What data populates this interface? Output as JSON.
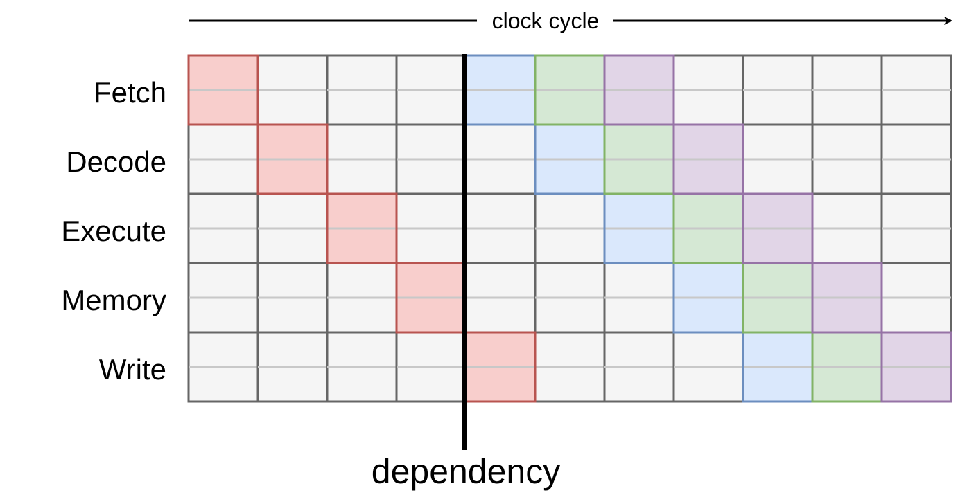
{
  "axis": {
    "label": "clock cycle"
  },
  "stages": [
    "Fetch",
    "Decode",
    "Execute",
    "Memory",
    "Write"
  ],
  "cycles": 11,
  "dependency": {
    "label": "dependency",
    "after_cycle": 4
  },
  "instructions": [
    {
      "color": "red",
      "fill": "#f8cecc",
      "stroke": "#b85450",
      "cells": [
        [
          0,
          0
        ],
        [
          1,
          1
        ],
        [
          2,
          2
        ],
        [
          3,
          3
        ],
        [
          4,
          4
        ]
      ]
    },
    {
      "color": "blue",
      "fill": "#dae8fc",
      "stroke": "#6c8ebf",
      "cells": [
        [
          0,
          4
        ],
        [
          1,
          5
        ],
        [
          2,
          6
        ],
        [
          3,
          7
        ],
        [
          4,
          8
        ]
      ]
    },
    {
      "color": "green",
      "fill": "#d5e8d4",
      "stroke": "#82b366",
      "cells": [
        [
          0,
          5
        ],
        [
          1,
          6
        ],
        [
          2,
          7
        ],
        [
          3,
          8
        ],
        [
          4,
          9
        ]
      ]
    },
    {
      "color": "purple",
      "fill": "#e1d5e7",
      "stroke": "#9673a6",
      "cells": [
        [
          0,
          6
        ],
        [
          1,
          7
        ],
        [
          2,
          8
        ],
        [
          3,
          9
        ],
        [
          4,
          10
        ]
      ]
    }
  ],
  "colors": {
    "empty_fill": "#f5f5f5",
    "grid_stroke": "#666666",
    "midline": "#c8c8c8",
    "dependency_line": "#000000"
  }
}
